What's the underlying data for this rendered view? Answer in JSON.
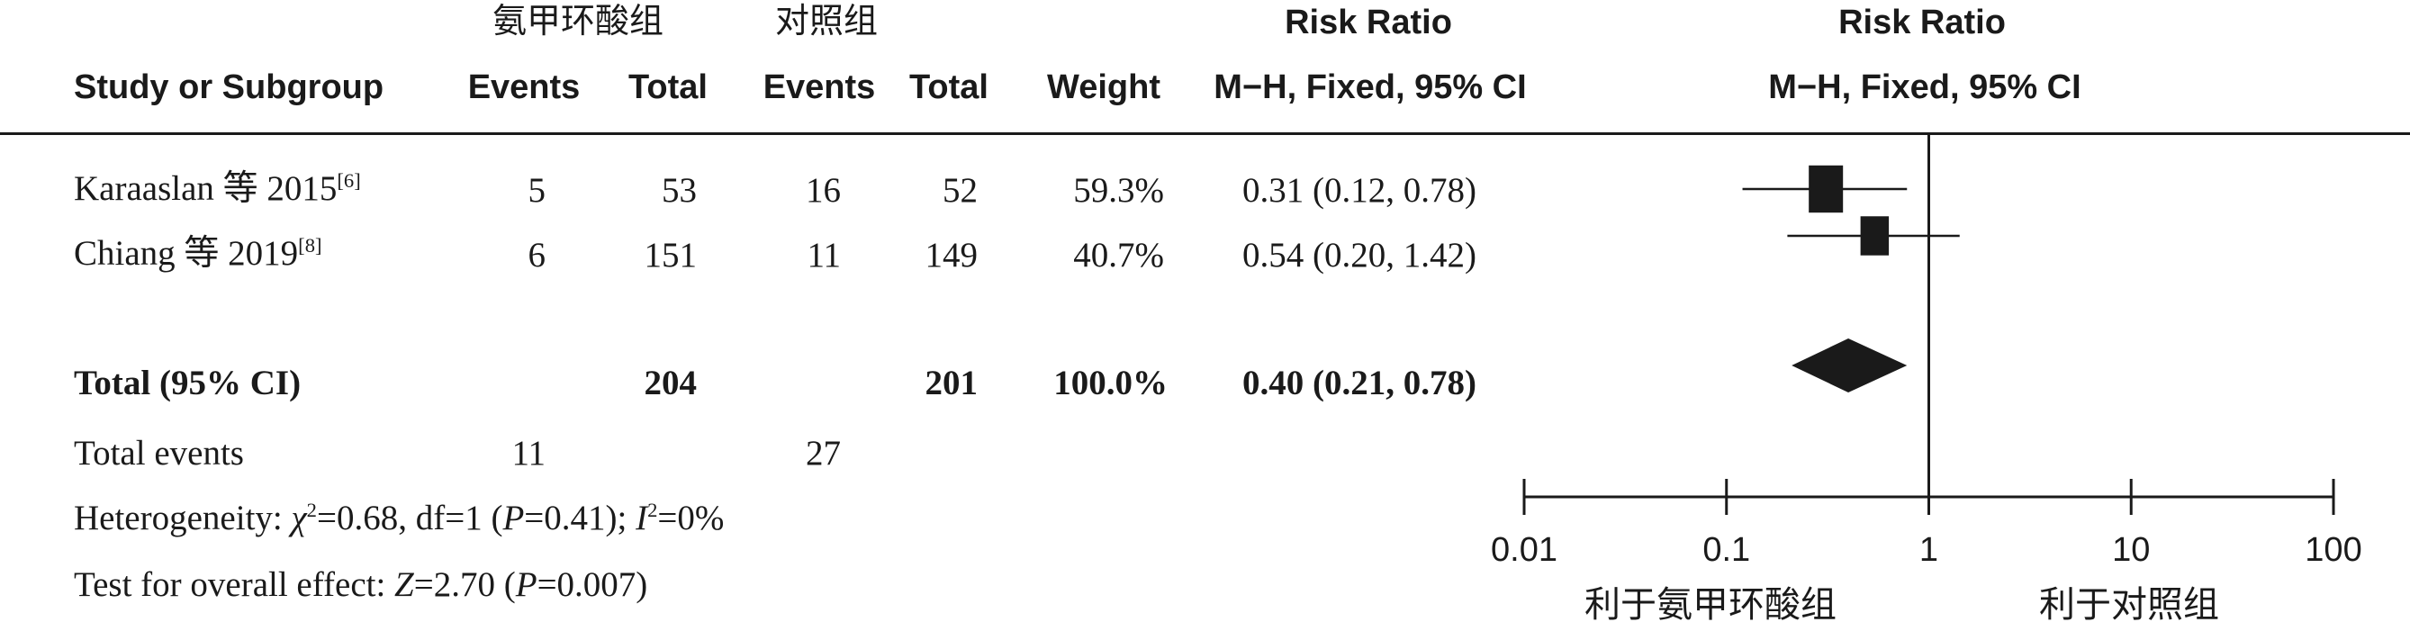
{
  "header": {
    "group_treatment": "氨甲环酸组",
    "group_control": "对照组",
    "risk_ratio_col": "Risk Ratio",
    "risk_ratio_plot": "Risk Ratio",
    "study_col": "Study or Subgroup",
    "events_t": "Events",
    "total_t": "Total",
    "events_c": "Events",
    "total_c": "Total",
    "weight": "Weight",
    "method_col": "M−H, Fixed, 95% CI",
    "method_plot": "M−H, Fixed, 95% CI"
  },
  "studies": [
    {
      "name": "Karaaslan 等 2015",
      "ref": "[6]",
      "events_t": "5",
      "total_t": "53",
      "events_c": "16",
      "total_c": "52",
      "weight": "59.3%",
      "rr_text": "0.31 (0.12, 0.78)"
    },
    {
      "name": "Chiang 等 2019",
      "ref": "[8]",
      "events_t": "6",
      "total_t": "151",
      "events_c": "11",
      "total_c": "149",
      "weight": "40.7%",
      "rr_text": "0.54 (0.20, 1.42)"
    }
  ],
  "total": {
    "label": "Total (95% CI)",
    "total_t": "204",
    "total_c": "201",
    "weight": "100.0%",
    "rr_text": "0.40 (0.21, 0.78)"
  },
  "total_events": {
    "label": "Total events",
    "events_t": "11",
    "events_c": "27"
  },
  "heterogeneity": {
    "prefix": "Heterogeneity: ",
    "chi_symbol": "χ",
    "chi_sup": "2",
    "chi_rest": "=0.68, df=1 (",
    "p_symbol": "P",
    "p_rest": "=0.41); ",
    "i_symbol": "I",
    "i_sup": "2",
    "i_rest": "=0%"
  },
  "overall_effect": {
    "prefix": "Test for overall effect: ",
    "z_symbol": "Z",
    "z_rest": "=2.70 (",
    "p_symbol": "P",
    "p_rest": "=0.007)"
  },
  "favours": {
    "left": "利于氨甲环酸组",
    "right": "利于对照组"
  },
  "chart_data": {
    "type": "forest",
    "x_scale": "log",
    "xlim": [
      0.01,
      100
    ],
    "x_ticks": [
      "0.01",
      "0.1",
      "1",
      "10",
      "100"
    ],
    "reference_line": 1,
    "studies": [
      {
        "name": "Karaaslan 等 2015",
        "estimate": 0.31,
        "ci_low": 0.12,
        "ci_high": 0.78,
        "weight": 59.3
      },
      {
        "name": "Chiang 等 2019",
        "estimate": 0.54,
        "ci_low": 0.2,
        "ci_high": 1.42,
        "weight": 40.7
      }
    ],
    "pooled": {
      "estimate": 0.4,
      "ci_low": 0.21,
      "ci_high": 0.78
    }
  }
}
